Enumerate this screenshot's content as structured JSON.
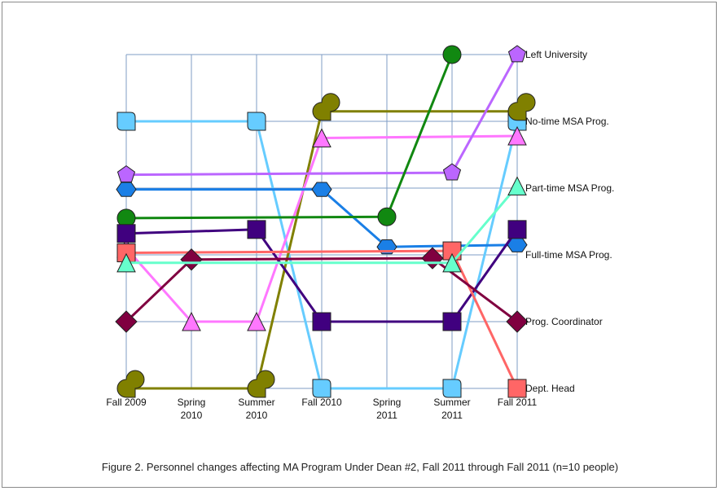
{
  "caption": "Figure 2. Personnel changes affecting MA Program Under Dean #2, Fall 2011 through Fall 2011 (n=10 people)",
  "chart_data": {
    "type": "line",
    "categories": [
      [
        "Fall 2009"
      ],
      [
        "Spring",
        "2010"
      ],
      [
        "Summer",
        "2010"
      ],
      [
        "Fall 2010"
      ],
      [
        "Spring",
        "2011"
      ],
      [
        "Summer",
        "2011"
      ],
      [
        "Fall 2011"
      ]
    ],
    "y_categories": [
      "Dept. Head",
      "Prog. Coordinator",
      "Full-time MSA Prog.",
      "Part-time MSA Prog.",
      "No-time MSA Prog.",
      "Left University"
    ],
    "series": [
      {
        "color": "#66ccff",
        "marker": "roundsquare",
        "points": [
          [
            0,
            4
          ],
          [
            2,
            4
          ],
          [
            3,
            0
          ],
          [
            5,
            0
          ],
          [
            6,
            4
          ]
        ]
      },
      {
        "color": "#808000",
        "marker": "halfround",
        "points": [
          [
            0,
            0
          ],
          [
            2,
            0
          ],
          [
            3,
            4.15
          ],
          [
            6,
            4.15
          ]
        ]
      },
      {
        "color": "#ff77ff",
        "marker": "triangle",
        "points": [
          [
            0,
            2.1
          ],
          [
            1,
            1
          ],
          [
            2,
            1
          ],
          [
            3,
            3.75
          ],
          [
            6,
            3.78
          ]
        ]
      },
      {
        "color": "#bb66ff",
        "marker": "pentagon",
        "points": [
          [
            0,
            3.2
          ],
          [
            5,
            3.23
          ],
          [
            6,
            5
          ]
        ]
      },
      {
        "color": "#1a7fe6",
        "marker": "hexagon",
        "points": [
          [
            0,
            2.98
          ],
          [
            3,
            2.98
          ],
          [
            4,
            2.12
          ],
          [
            6,
            2.15
          ]
        ]
      },
      {
        "color": "#118811",
        "marker": "circle",
        "points": [
          [
            0,
            2.55
          ],
          [
            4,
            2.57
          ],
          [
            5,
            5
          ]
        ]
      },
      {
        "color": "#40007f",
        "marker": "square",
        "points": [
          [
            0,
            2.32
          ],
          [
            2,
            2.38
          ],
          [
            3,
            1
          ],
          [
            5,
            1
          ],
          [
            6,
            2.38
          ]
        ]
      },
      {
        "color": "#ff6666",
        "marker": "square",
        "points": [
          [
            0,
            2.03
          ],
          [
            5,
            2.06
          ],
          [
            6,
            0
          ]
        ]
      },
      {
        "color": "#800040",
        "marker": "diamond",
        "points": [
          [
            0,
            1
          ],
          [
            1,
            1.93
          ],
          [
            4.7,
            1.95
          ],
          [
            6,
            1
          ]
        ]
      },
      {
        "color": "#66ffcc",
        "marker": "triangle",
        "points": [
          [
            0,
            1.88
          ],
          [
            5,
            1.88
          ],
          [
            6,
            3.03
          ]
        ]
      }
    ]
  }
}
